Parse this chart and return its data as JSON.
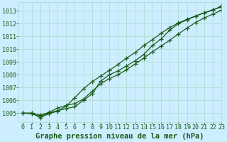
{
  "title": "Graphe pression niveau de la mer (hPa)",
  "background_color": "#cceeff",
  "plot_bg_color": "#cceeff",
  "grid_color": "#b0d8cc",
  "line_color": "#1a5c1a",
  "xlim": [
    -0.5,
    23
  ],
  "ylim": [
    1004.3,
    1013.7
  ],
  "yticks": [
    1005,
    1006,
    1007,
    1008,
    1009,
    1010,
    1011,
    1012,
    1013
  ],
  "xticks": [
    0,
    1,
    2,
    3,
    4,
    5,
    6,
    7,
    8,
    9,
    10,
    11,
    12,
    13,
    14,
    15,
    16,
    17,
    18,
    19,
    20,
    21,
    22,
    23
  ],
  "series": [
    [
      1005.0,
      1004.95,
      1004.75,
      1005.0,
      1005.2,
      1005.35,
      1005.5,
      1006.0,
      1006.5,
      1007.5,
      1008.0,
      1008.3,
      1008.7,
      1009.1,
      1009.6,
      1010.3,
      1010.8,
      1011.5,
      1012.0,
      1012.3,
      1012.6,
      1012.85,
      1013.05,
      1013.4
    ],
    [
      1005.0,
      1005.0,
      1004.65,
      1004.95,
      1005.15,
      1005.55,
      1006.2,
      1006.9,
      1007.45,
      1007.9,
      1008.35,
      1008.8,
      1009.3,
      1009.75,
      1010.3,
      1010.75,
      1011.25,
      1011.7,
      1012.05,
      1012.35,
      1012.6,
      1012.85,
      1013.1,
      1013.3
    ],
    [
      1005.0,
      1005.0,
      1004.85,
      1005.05,
      1005.4,
      1005.6,
      1005.75,
      1006.1,
      1006.7,
      1007.3,
      1007.7,
      1008.0,
      1008.4,
      1008.85,
      1009.3,
      1009.8,
      1010.25,
      1010.7,
      1011.2,
      1011.65,
      1012.1,
      1012.45,
      1012.75,
      1013.05
    ]
  ],
  "marker": "+",
  "marker_size": 5,
  "line_width": 0.9,
  "font_color": "#1a5c1a",
  "title_fontsize": 7.5,
  "tick_fontsize": 6,
  "label_fontsize": 7
}
